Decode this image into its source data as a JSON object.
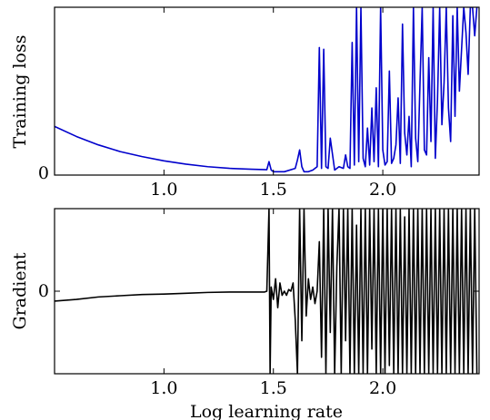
{
  "chart_data": [
    {
      "type": "line",
      "xlabel": "",
      "ylabel": "Training loss",
      "xlim": [
        0.5,
        2.44
      ],
      "ylim": [
        0,
        1
      ],
      "x_ticks": [
        "1.0",
        "1.5",
        "2.0"
      ],
      "y_ticks": [
        "0"
      ],
      "grid": false,
      "series": [
        {
          "color": "#0000cc",
          "x": [
            0.5,
            0.6,
            0.7,
            0.8,
            0.9,
            1.0,
            1.1,
            1.2,
            1.3,
            1.4,
            1.47,
            1.48,
            1.49,
            1.5,
            1.55,
            1.6,
            1.61,
            1.62,
            1.63,
            1.64,
            1.66,
            1.68,
            1.7,
            1.71,
            1.72,
            1.73,
            1.74,
            1.75,
            1.76,
            1.78,
            1.8,
            1.82,
            1.83,
            1.84,
            1.85,
            1.86,
            1.87,
            1.88,
            1.89,
            1.9,
            1.91,
            1.92,
            1.93,
            1.94,
            1.95,
            1.96,
            1.97,
            1.98,
            1.99,
            2.0,
            2.01,
            2.02,
            2.03,
            2.04,
            2.05,
            2.06,
            2.07,
            2.08,
            2.09,
            2.1,
            2.11,
            2.12,
            2.13,
            2.14,
            2.15,
            2.16,
            2.17,
            2.18,
            2.19,
            2.2,
            2.21,
            2.22,
            2.23,
            2.24,
            2.25,
            2.26,
            2.27,
            2.28,
            2.29,
            2.3,
            2.31,
            2.32,
            2.33,
            2.34,
            2.35,
            2.36,
            2.37,
            2.38,
            2.39,
            2.4,
            2.41,
            2.42,
            2.43
          ],
          "values": [
            0.29,
            0.23,
            0.18,
            0.14,
            0.11,
            0.085,
            0.065,
            0.05,
            0.04,
            0.035,
            0.032,
            0.08,
            0.03,
            0.02,
            0.02,
            0.04,
            0.09,
            0.15,
            0.05,
            0.02,
            0.02,
            0.03,
            0.05,
            0.76,
            0.04,
            0.75,
            0.05,
            0.04,
            0.22,
            0.03,
            0.05,
            0.04,
            0.12,
            0.05,
            0.04,
            0.79,
            0.06,
            1.0,
            0.08,
            1.0,
            0.1,
            0.05,
            0.28,
            0.06,
            0.4,
            0.08,
            0.52,
            0.05,
            1.0,
            0.15,
            0.06,
            0.08,
            0.62,
            0.07,
            0.1,
            0.18,
            0.46,
            0.07,
            0.9,
            0.25,
            0.12,
            0.35,
            0.05,
            1.0,
            0.22,
            0.08,
            0.55,
            1.0,
            0.15,
            0.12,
            0.7,
            0.2,
            1.0,
            0.1,
            0.45,
            1.0,
            0.3,
            0.55,
            1.0,
            0.4,
            0.2,
            0.95,
            0.35,
            1.0,
            0.5,
            0.75,
            1.0,
            0.85,
            0.6,
            1.0,
            1.0,
            0.83,
            1.0
          ]
        }
      ]
    },
    {
      "type": "line",
      "xlabel": "Log learning rate",
      "ylabel": "Gradient",
      "xlim": [
        0.5,
        2.44
      ],
      "ylim": [
        -1,
        1
      ],
      "x_ticks": [
        "1.0",
        "1.5",
        "2.0"
      ],
      "y_ticks": [
        "0"
      ],
      "grid": false,
      "series": [
        {
          "color": "#000000",
          "x": [
            0.5,
            0.6,
            0.7,
            0.8,
            0.9,
            1.0,
            1.1,
            1.2,
            1.3,
            1.4,
            1.46,
            1.47,
            1.48,
            1.485,
            1.49,
            1.5,
            1.51,
            1.52,
            1.53,
            1.54,
            1.55,
            1.56,
            1.57,
            1.58,
            1.59,
            1.6,
            1.61,
            1.62,
            1.63,
            1.64,
            1.65,
            1.66,
            1.67,
            1.68,
            1.69,
            1.7,
            1.71,
            1.72,
            1.73,
            1.74,
            1.75,
            1.76,
            1.77,
            1.78,
            1.79,
            1.8,
            1.81,
            1.82,
            1.83,
            1.84,
            1.85,
            1.86,
            1.87,
            1.88,
            1.89,
            1.9,
            1.91,
            1.92,
            1.93,
            1.94,
            1.95,
            1.96,
            1.97,
            1.98,
            1.99,
            2.0,
            2.01,
            2.02,
            2.03,
            2.04,
            2.05,
            2.06,
            2.07,
            2.08,
            2.09,
            2.1,
            2.11,
            2.12,
            2.13,
            2.14,
            2.15,
            2.16,
            2.17,
            2.18,
            2.19,
            2.2,
            2.21,
            2.22,
            2.23,
            2.24,
            2.25,
            2.26,
            2.27,
            2.28,
            2.29,
            2.3,
            2.31,
            2.32,
            2.33,
            2.34,
            2.35,
            2.36,
            2.37,
            2.38,
            2.39,
            2.4,
            2.41,
            2.42,
            2.43
          ],
          "values": [
            -0.12,
            -0.1,
            -0.07,
            -0.055,
            -0.04,
            -0.035,
            -0.025,
            -0.015,
            -0.01,
            -0.01,
            -0.01,
            0.0,
            1.0,
            -1.0,
            0.05,
            -0.1,
            0.15,
            -0.2,
            0.1,
            -0.05,
            0.0,
            -0.05,
            0.02,
            0.0,
            0.1,
            -0.35,
            -1.0,
            1.0,
            -0.6,
            1.0,
            -0.3,
            0.15,
            -0.1,
            0.05,
            -0.15,
            0.0,
            0.6,
            -0.8,
            1.0,
            -1.0,
            1.0,
            -0.5,
            1.0,
            -1.0,
            0.3,
            1.0,
            -1.0,
            1.0,
            -0.6,
            1.0,
            -1.0,
            1.0,
            -1.0,
            0.8,
            -1.0,
            1.0,
            -1.0,
            1.0,
            -1.0,
            1.0,
            -0.7,
            1.0,
            -1.0,
            1.0,
            -1.0,
            1.0,
            -1.0,
            1.0,
            -0.9,
            1.0,
            -1.0,
            1.0,
            -1.0,
            1.0,
            -1.0,
            0.9,
            -1.0,
            1.0,
            -1.0,
            1.0,
            -1.0,
            1.0,
            -1.0,
            1.0,
            -1.0,
            1.0,
            -1.0,
            1.0,
            -1.0,
            1.0,
            -1.0,
            1.0,
            -1.0,
            1.0,
            -1.0,
            1.0,
            -1.0,
            1.0,
            -1.0,
            1.0,
            -1.0,
            1.0,
            -1.0,
            1.0,
            -1.0,
            1.0,
            -1.0,
            1.0,
            -1.0
          ]
        }
      ]
    }
  ]
}
